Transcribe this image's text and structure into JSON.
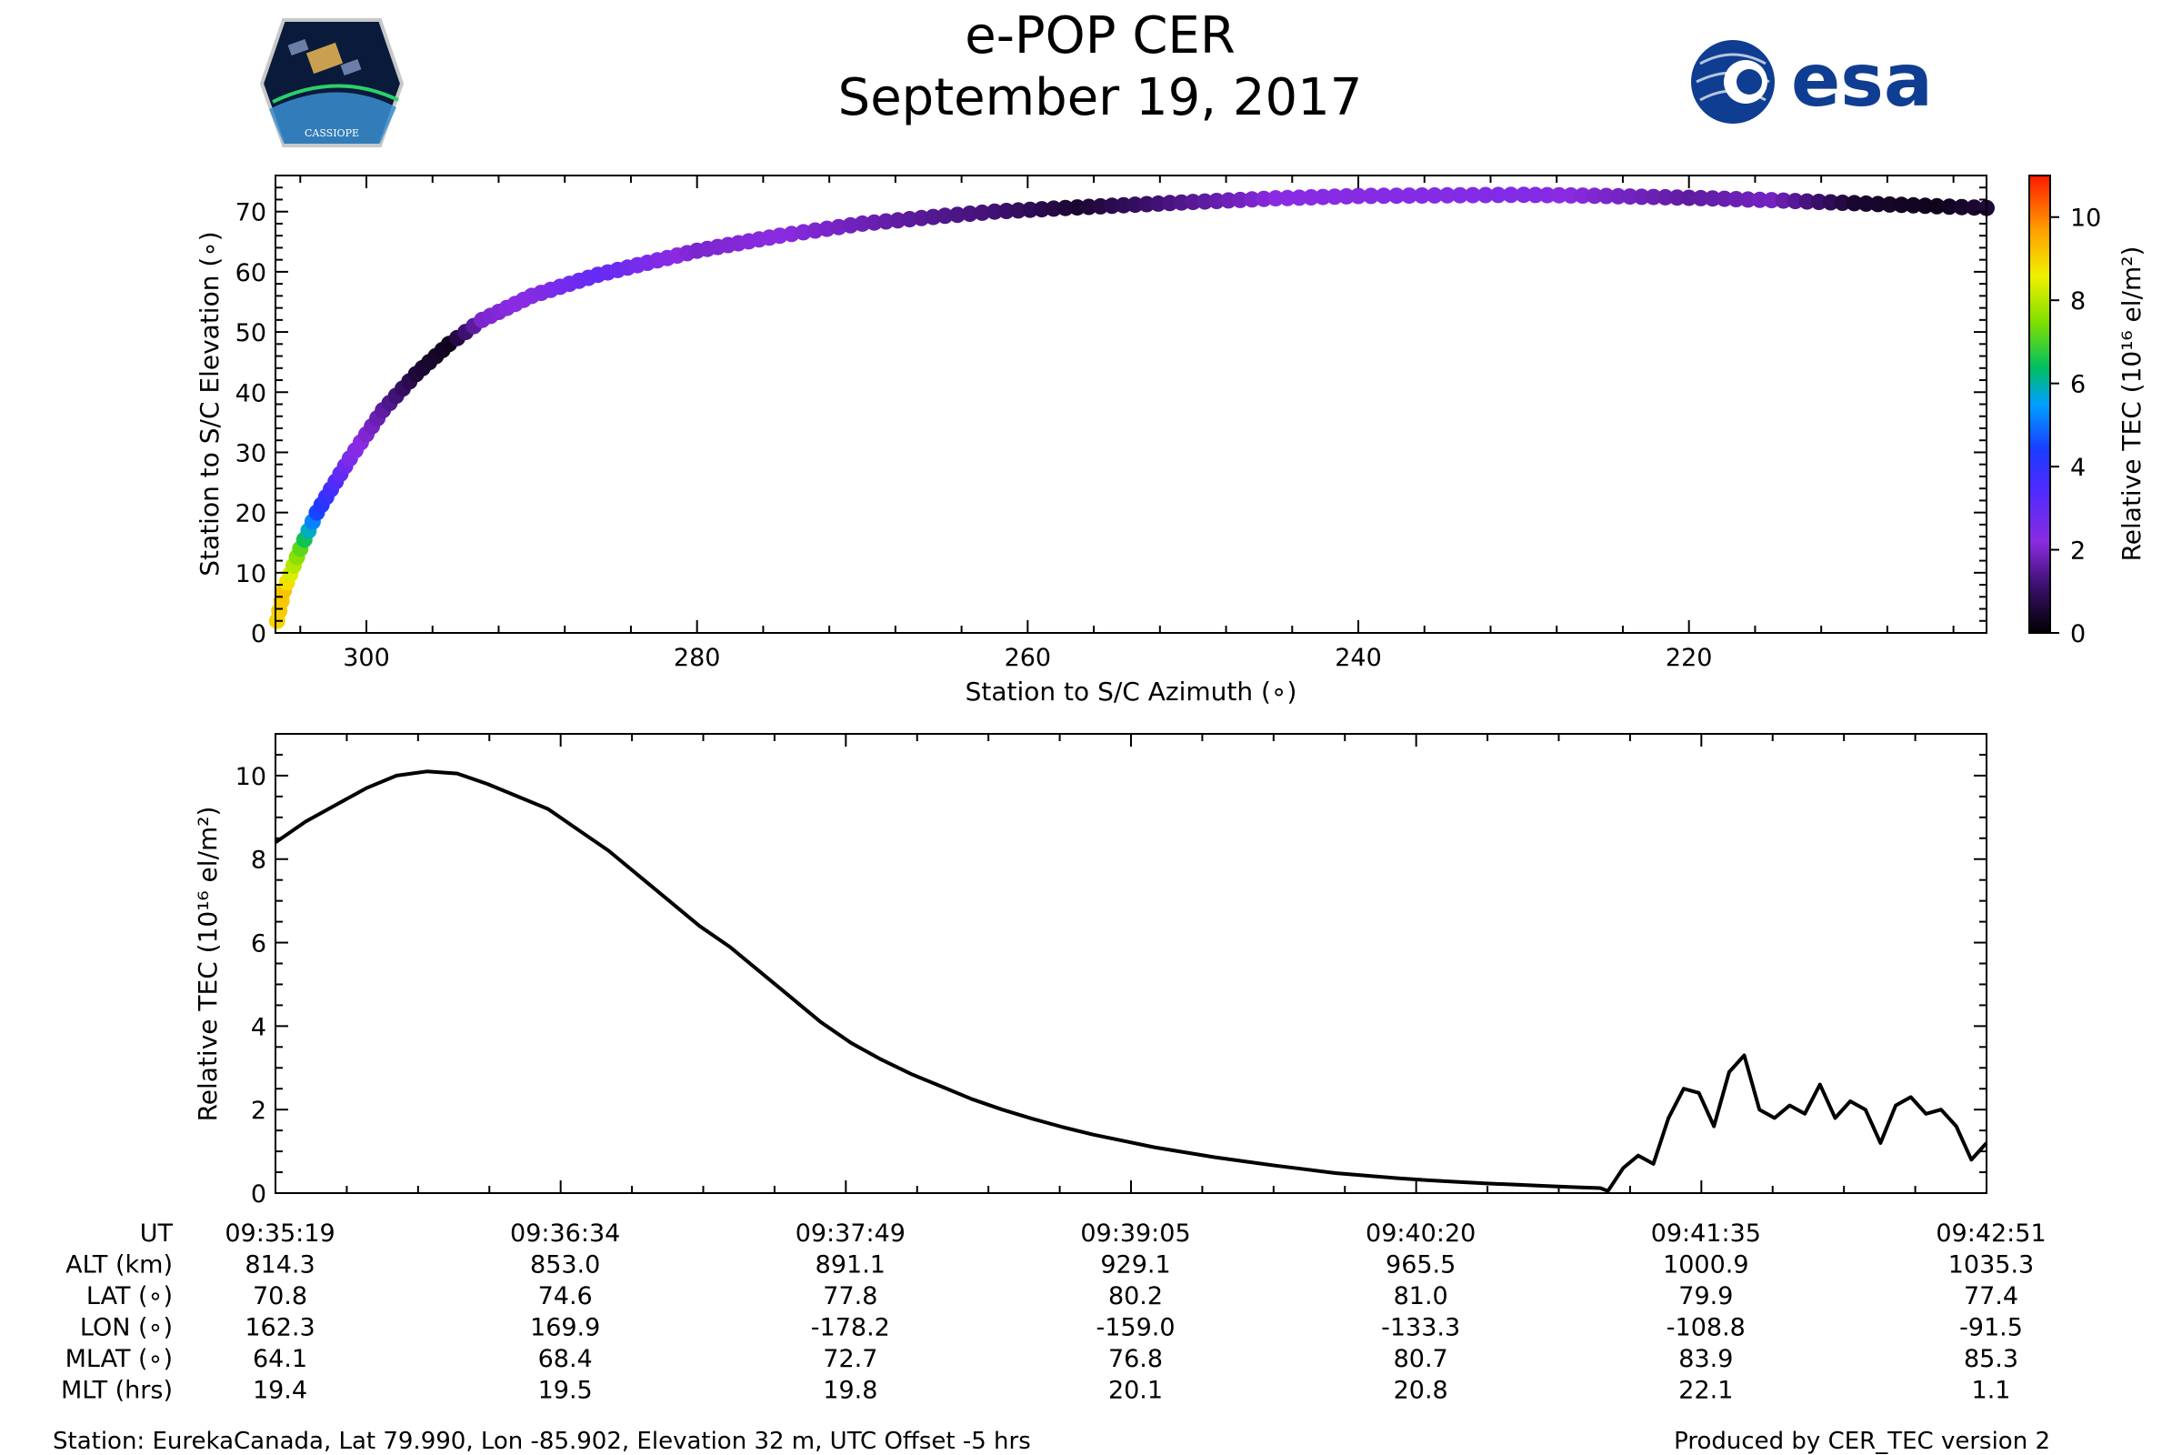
{
  "header": {
    "title_line1": "e-POP CER",
    "title_line2": "September 19, 2017",
    "logo_left_text": "CASSIOPE",
    "logo_right_text": "esa"
  },
  "colors": {
    "line": "#000000",
    "esa_blue": "#0f3d91",
    "logo_bg": "#0a1a3a"
  },
  "chart_data": [
    {
      "type": "scatter",
      "name": "elevation-vs-azimuth",
      "xlabel": "Station to S/C Azimuth (∘)",
      "ylabel": "Station to S/C Elevation (∘)",
      "xlim": [
        305.5,
        202
      ],
      "ylim": [
        0,
        76
      ],
      "xticks": [
        300,
        280,
        260,
        240,
        220
      ],
      "yticks": [
        0,
        10,
        20,
        30,
        40,
        50,
        60,
        70
      ],
      "colorbar": {
        "label": "Relative TEC (10¹⁶ el/m²)",
        "range": [
          0,
          11
        ],
        "ticks": [
          0,
          2,
          4,
          6,
          8,
          10
        ],
        "colormap": "gnuplot-rainbow"
      },
      "track": [
        {
          "az": 305.4,
          "el": 2,
          "tec": 9.0
        },
        {
          "az": 305.0,
          "el": 7,
          "tec": 9.2
        },
        {
          "az": 304.0,
          "el": 14,
          "tec": 7.2
        },
        {
          "az": 303.0,
          "el": 20,
          "tec": 4.5
        },
        {
          "az": 301.0,
          "el": 29,
          "tec": 2.5
        },
        {
          "az": 299.0,
          "el": 37,
          "tec": 1.6
        },
        {
          "az": 297.0,
          "el": 43,
          "tec": 0.6
        },
        {
          "az": 295.0,
          "el": 48,
          "tec": 0.3
        },
        {
          "az": 293.0,
          "el": 52,
          "tec": 2.0
        },
        {
          "az": 290.0,
          "el": 56,
          "tec": 2.3
        },
        {
          "az": 286.0,
          "el": 59.5,
          "tec": 3.0
        },
        {
          "az": 280.0,
          "el": 63.5,
          "tec": 2.0
        },
        {
          "az": 275.0,
          "el": 66,
          "tec": 2.2
        },
        {
          "az": 270.0,
          "el": 68,
          "tec": 1.8
        },
        {
          "az": 265.0,
          "el": 69.3,
          "tec": 1.4
        },
        {
          "az": 262.0,
          "el": 70,
          "tec": 1.2
        },
        {
          "az": 257.0,
          "el": 70.7,
          "tec": 0.5
        },
        {
          "az": 250.0,
          "el": 71.6,
          "tec": 1.5
        },
        {
          "az": 245.0,
          "el": 72.2,
          "tec": 2.2
        },
        {
          "az": 240.0,
          "el": 72.6,
          "tec": 2.3
        },
        {
          "az": 230.0,
          "el": 72.8,
          "tec": 2.4
        },
        {
          "az": 225.0,
          "el": 72.6,
          "tec": 2.0
        },
        {
          "az": 220.0,
          "el": 72.3,
          "tec": 1.6
        },
        {
          "az": 215.0,
          "el": 71.9,
          "tec": 1.9
        },
        {
          "az": 210.0,
          "el": 71.4,
          "tec": 0.5
        },
        {
          "az": 205.0,
          "el": 70.9,
          "tec": 0.3
        },
        {
          "az": 202.0,
          "el": 70.6,
          "tec": 0.6
        }
      ]
    },
    {
      "type": "line",
      "name": "tec-vs-time",
      "xlabel": "UT",
      "ylabel": "Relative TEC (10¹⁶ el/m²)",
      "xlim": [
        0,
        452
      ],
      "ylim": [
        0,
        11
      ],
      "yticks": [
        0,
        2,
        4,
        6,
        8,
        10
      ],
      "series": [
        {
          "name": "Relative TEC",
          "x": [
            0,
            8,
            16,
            24,
            32,
            40,
            48,
            56,
            64,
            72,
            80,
            88,
            96,
            104,
            112,
            120,
            128,
            136,
            144,
            152,
            160,
            168,
            176,
            184,
            192,
            200,
            208,
            216,
            224,
            232,
            240,
            248,
            256,
            264,
            272,
            280,
            288,
            296,
            304,
            312,
            320,
            328,
            336,
            344,
            350,
            352,
            356,
            360,
            364,
            368,
            372,
            376,
            380,
            384,
            388,
            392,
            396,
            400,
            404,
            408,
            412,
            416,
            420,
            424,
            428,
            432,
            436,
            440,
            444,
            448,
            452
          ],
          "y": [
            8.4,
            8.9,
            9.3,
            9.7,
            10.0,
            10.1,
            10.05,
            9.8,
            9.5,
            9.2,
            8.7,
            8.2,
            7.6,
            7.0,
            6.4,
            5.9,
            5.3,
            4.7,
            4.1,
            3.6,
            3.2,
            2.85,
            2.55,
            2.25,
            2.0,
            1.78,
            1.58,
            1.4,
            1.25,
            1.1,
            0.98,
            0.86,
            0.76,
            0.66,
            0.57,
            0.48,
            0.42,
            0.36,
            0.31,
            0.27,
            0.23,
            0.2,
            0.17,
            0.14,
            0.12,
            0.05,
            0.6,
            0.9,
            0.7,
            1.8,
            2.5,
            2.4,
            1.6,
            2.9,
            3.3,
            2.0,
            1.8,
            2.1,
            1.9,
            2.6,
            1.8,
            2.2,
            2.0,
            1.2,
            2.1,
            2.3,
            1.9,
            2.0,
            1.6,
            0.8,
            1.2
          ]
        }
      ],
      "time_table": {
        "row_labels": [
          "UT",
          "ALT (km)",
          "LAT (∘)",
          "LON (∘)",
          "MLAT (∘)",
          "MLT (hrs)"
        ],
        "columns": [
          [
            "09:35:19",
            "814.3",
            "70.8",
            "162.3",
            "64.1",
            "19.4"
          ],
          [
            "09:36:34",
            "853.0",
            "74.6",
            "169.9",
            "68.4",
            "19.5"
          ],
          [
            "09:37:49",
            "891.1",
            "77.8",
            "-178.2",
            "72.7",
            "19.8"
          ],
          [
            "09:39:05",
            "929.1",
            "80.2",
            "-159.0",
            "76.8",
            "20.1"
          ],
          [
            "09:40:20",
            "965.5",
            "81.0",
            "-133.3",
            "80.7",
            "20.8"
          ],
          [
            "09:41:35",
            "1000.9",
            "79.9",
            "-108.8",
            "83.9",
            "22.1"
          ],
          [
            "09:42:51",
            "1035.3",
            "77.4",
            "-91.5",
            "85.3",
            "1.1"
          ]
        ]
      }
    }
  ],
  "footer": {
    "station_info": "Station: EurekaCanada, Lat 79.990, Lon -85.902, Elevation 32 m, UTC Offset -5 hrs",
    "produced_by": "Produced by CER_TEC version 2"
  }
}
